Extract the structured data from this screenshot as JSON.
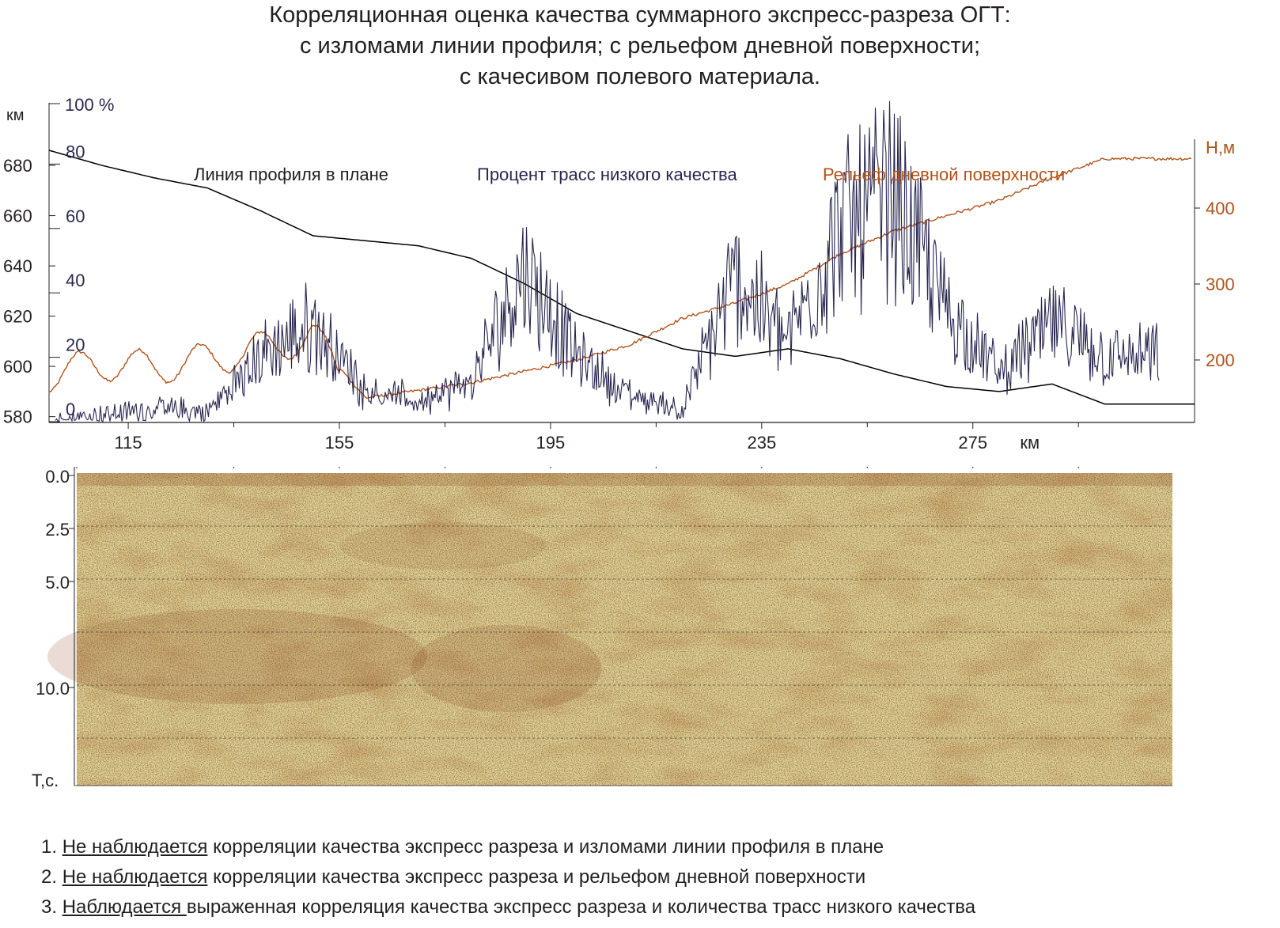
{
  "title": [
    "Корреляционная оценка качества суммарного экспресс-разреза ОГТ:",
    "с изломами линии профиля; с рельефом дневной поверхности;",
    "с качесивом полевого материала."
  ],
  "chart_data": [
    {
      "type": "line",
      "x": [
        100,
        110,
        120,
        130,
        140,
        150,
        160,
        170,
        180,
        190,
        200,
        210,
        220,
        230,
        240,
        250,
        260,
        270,
        280,
        290,
        300
      ],
      "xlim": [
        100,
        317
      ],
      "xticks": [
        115,
        155,
        195,
        235,
        275
      ],
      "xunit": "км",
      "left_axis": {
        "unit": "км",
        "ylim": [
          578,
          702
        ],
        "ticks": [
          580,
          600,
          620,
          640,
          660,
          680
        ]
      },
      "percent_axis": {
        "unit": "100 %",
        "ylim": [
          0,
          100
        ],
        "ticks": [
          0,
          20,
          40,
          60,
          80
        ]
      },
      "right_axis": {
        "unit": "Н,м",
        "ticks": [
          200,
          300,
          400
        ]
      },
      "grid": false,
      "series": [
        {
          "name": "Линия профиля в плане",
          "axis": "left",
          "color": "#000000",
          "values": [
            686,
            680,
            675,
            671,
            662,
            652,
            650,
            648,
            643,
            633,
            621,
            614,
            607,
            604,
            607,
            603,
            597,
            592,
            590,
            593,
            585
          ]
        },
        {
          "name": "Процент трасс низкого качества",
          "axis": "percent",
          "color": "#2a2750",
          "values": [
            0,
            2,
            4,
            3,
            20,
            30,
            10,
            6,
            12,
            48,
            20,
            8,
            4,
            45,
            25,
            60,
            70,
            35,
            15,
            30,
            20
          ]
        },
        {
          "name": "Рельеф дневной поверхности",
          "axis": "right",
          "color": "#b0521a",
          "values": [
            180,
            195,
            190,
            200,
            215,
            230,
            150,
            160,
            170,
            185,
            200,
            220,
            255,
            275,
            300,
            340,
            370,
            390,
            410,
            440,
            465
          ]
        }
      ]
    },
    {
      "type": "heatmap",
      "ylabel": "Т,с.",
      "yticks": [
        "0.0",
        "2.5",
        "5.0",
        "10.0"
      ],
      "colors": {
        "light": "#e9d99a",
        "dark": "#8b3a12"
      }
    }
  ],
  "notes": [
    {
      "num": "1. ",
      "underlined": "Не наблюдается",
      "rest": " корреляции качества экспресс разреза и изломами линии профиля в плане"
    },
    {
      "num": "2. ",
      "underlined": "Не наблюдается",
      "rest": " корреляции качества экспресс разреза и рельефом дневной поверхности"
    },
    {
      "num": "3. ",
      "underlined": "Наблюдается ",
      "rest": "выраженная корреляция качества экспресс разреза и количества трасс низкого качества"
    }
  ]
}
